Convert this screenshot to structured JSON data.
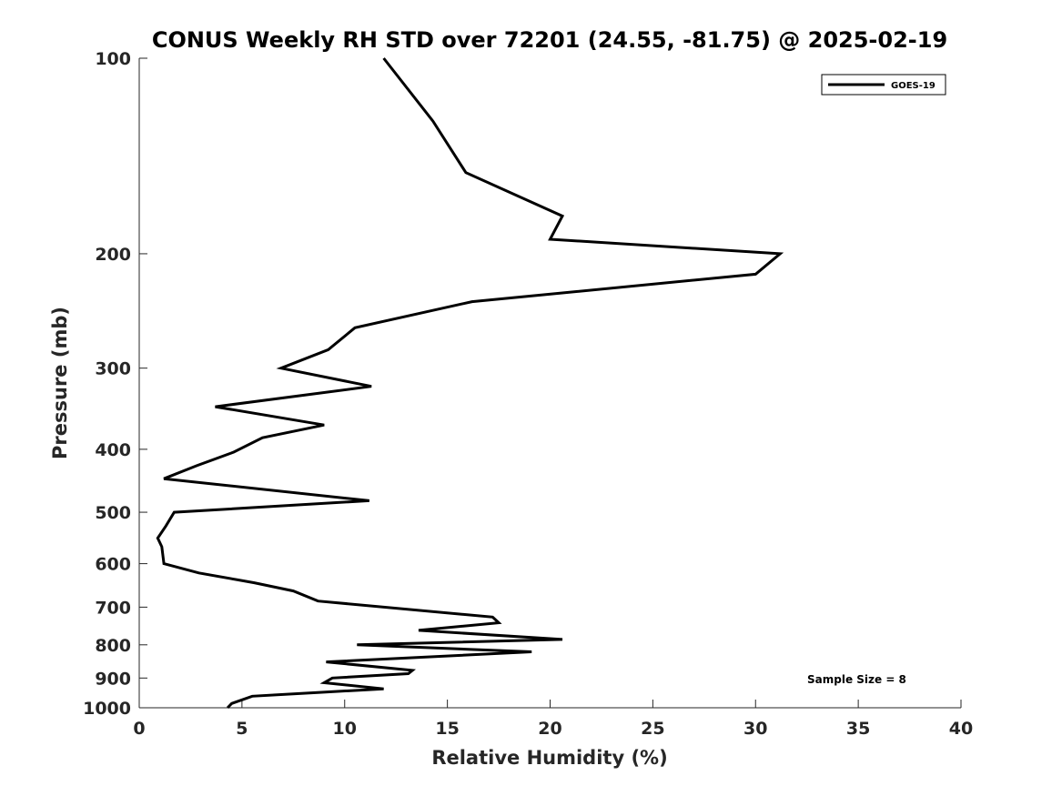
{
  "chart_data": {
    "type": "line",
    "title": "CONUS Weekly RH STD over 72201 (24.55, -81.75) @ 2025-02-19",
    "xlabel": "Relative Humidity (%)",
    "ylabel": "Pressure (mb)",
    "xlim": [
      0,
      40
    ],
    "ylim": [
      100,
      1000
    ],
    "yscale": "log",
    "y_reversed": true,
    "grid": false,
    "legend_position": "top-right",
    "x_ticks": [
      "0",
      "5",
      "10",
      "15",
      "20",
      "25",
      "30",
      "35",
      "40"
    ],
    "y_ticks": [
      "100",
      "200",
      "300",
      "400",
      "500",
      "600",
      "700",
      "800",
      "900",
      "1000"
    ],
    "annotation": "Sample Size = 8",
    "series": [
      {
        "name": "GOES-19",
        "color": "#000000",
        "points": [
          [
            11.9,
            100
          ],
          [
            14.3,
            125
          ],
          [
            15.9,
            150
          ],
          [
            20.6,
            175
          ],
          [
            20.0,
            190
          ],
          [
            31.2,
            200
          ],
          [
            30.0,
            215
          ],
          [
            16.2,
            237
          ],
          [
            10.5,
            260
          ],
          [
            9.2,
            281
          ],
          [
            6.9,
            300
          ],
          [
            11.3,
            320
          ],
          [
            3.7,
            344
          ],
          [
            9.0,
            367
          ],
          [
            6.0,
            384
          ],
          [
            4.6,
            404
          ],
          [
            2.8,
            424
          ],
          [
            1.2,
            444
          ],
          [
            11.2,
            480
          ],
          [
            1.7,
            500
          ],
          [
            1.3,
            525
          ],
          [
            0.9,
            548
          ],
          [
            1.1,
            565
          ],
          [
            1.2,
            600
          ],
          [
            2.9,
            620
          ],
          [
            5.6,
            642
          ],
          [
            7.5,
            661
          ],
          [
            8.7,
            685
          ],
          [
            17.2,
            725
          ],
          [
            17.5,
            740
          ],
          [
            13.6,
            760
          ],
          [
            20.6,
            785
          ],
          [
            10.6,
            800
          ],
          [
            19.1,
            820
          ],
          [
            9.1,
            850
          ],
          [
            13.3,
            876
          ],
          [
            13.1,
            886
          ],
          [
            9.4,
            900
          ],
          [
            9.0,
            915
          ],
          [
            11.9,
            935
          ],
          [
            5.5,
            960
          ],
          [
            4.5,
            985
          ],
          [
            4.3,
            1000
          ]
        ]
      }
    ]
  }
}
